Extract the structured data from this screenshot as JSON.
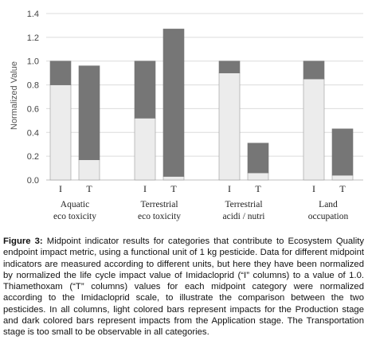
{
  "chart_data": {
    "type": "bar",
    "stacked": true,
    "ylabel": "Normalized Value",
    "ylim": [
      0,
      1.4
    ],
    "yticks": [
      "0.0",
      "0.2",
      "0.4",
      "0.6",
      "0.8",
      "1.0",
      "1.2",
      "1.4"
    ],
    "grid": true,
    "categories": [
      {
        "line1": "Aquatic",
        "line2": "eco toxicity"
      },
      {
        "line1": "Terrestrial",
        "line2": "eco toxicity"
      },
      {
        "line1": "Terrestrial",
        "line2": "acidi / nutri"
      },
      {
        "line1": "Land",
        "line2": "occupation"
      }
    ],
    "bar_labels": [
      "I",
      "T"
    ],
    "bars": [
      {
        "category": 0,
        "label": "I",
        "production": 0.8,
        "application": 0.2
      },
      {
        "category": 0,
        "label": "T",
        "production": 0.17,
        "application": 0.79
      },
      {
        "category": 1,
        "label": "I",
        "production": 0.52,
        "application": 0.48
      },
      {
        "category": 1,
        "label": "T",
        "production": 0.03,
        "application": 1.24
      },
      {
        "category": 2,
        "label": "I",
        "production": 0.9,
        "application": 0.1
      },
      {
        "category": 2,
        "label": "T",
        "production": 0.06,
        "application": 0.25
      },
      {
        "category": 3,
        "label": "I",
        "production": 0.85,
        "application": 0.15
      },
      {
        "category": 3,
        "label": "T",
        "production": 0.04,
        "application": 0.39
      }
    ],
    "colors": {
      "production": "#ececec",
      "application": "#767676",
      "edge": "#9a9a9a"
    }
  },
  "caption": {
    "label": "Figure 3:",
    "text": " Midpoint indicator results for categories that contribute to Ecosystem Quality endpoint impact metric, using a functional unit of 1 kg pesticide. Data for different midpoint indicators are measured according to different units, but here they have been normalized by normalized the life cycle impact value of Imidacloprid (“I” columns) to a value of 1.0. Thiamethoxam (“T” columns) values for each midpoint category were normalized according to the Imidacloprid scale, to illustrate the comparison between the two pesticides. In all columns, light colored bars represent impacts for the Production stage and dark colored bars represent impacts from the Application stage. The Transportation stage is too small to be observable in all categories."
  }
}
